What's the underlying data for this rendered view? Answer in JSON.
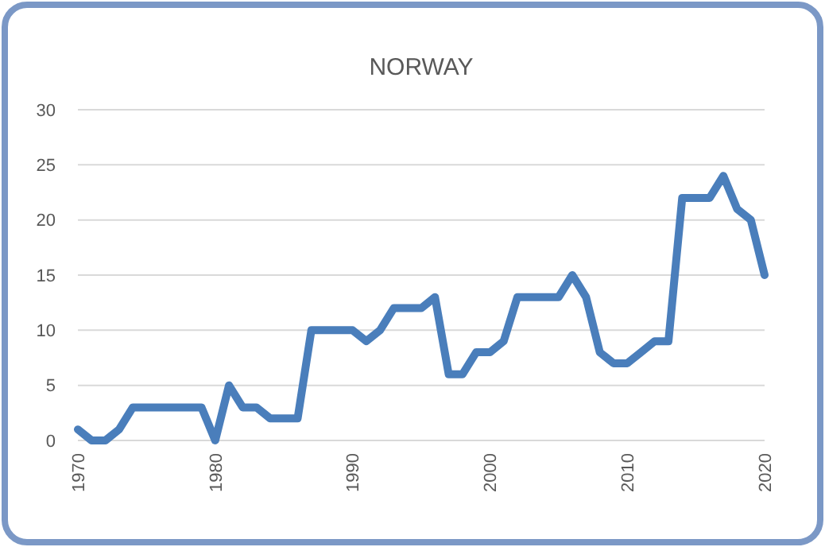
{
  "chart_data": {
    "type": "line",
    "title": "NORWAY",
    "x": [
      1970,
      1971,
      1972,
      1973,
      1974,
      1975,
      1976,
      1977,
      1978,
      1979,
      1980,
      1981,
      1982,
      1983,
      1984,
      1985,
      1986,
      1987,
      1988,
      1989,
      1990,
      1991,
      1992,
      1993,
      1994,
      1995,
      1996,
      1997,
      1998,
      1999,
      2000,
      2001,
      2002,
      2003,
      2004,
      2005,
      2006,
      2007,
      2008,
      2009,
      2010,
      2011,
      2012,
      2013,
      2014,
      2015,
      2016,
      2017,
      2018,
      2019,
      2020
    ],
    "series": [
      {
        "color": "#4a7ebb",
        "values": [
          1,
          0,
          0,
          1,
          3,
          3,
          3,
          3,
          3,
          3,
          0,
          5,
          3,
          3,
          2,
          2,
          2,
          10,
          10,
          10,
          10,
          9,
          10,
          12,
          12,
          12,
          13,
          6,
          6,
          8,
          8,
          9,
          13,
          13,
          13,
          13,
          15,
          13,
          8,
          7,
          7,
          8,
          9,
          9,
          22,
          22,
          22,
          24,
          21,
          20,
          15
        ]
      }
    ],
    "xlim": [
      1970,
      2020
    ],
    "xticks": [
      1970,
      1980,
      1990,
      2000,
      2010,
      2020
    ],
    "ylim": [
      0,
      30
    ],
    "yticks": [
      0,
      5,
      10,
      15,
      20,
      25,
      30
    ],
    "grid": "y",
    "marker": "none",
    "line_style": "solid"
  }
}
